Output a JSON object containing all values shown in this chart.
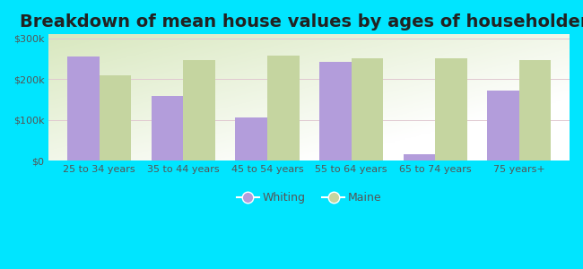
{
  "title": "Breakdown of mean house values by ages of householders",
  "categories": [
    "25 to 34 years",
    "35 to 44 years",
    "45 to 54 years",
    "55 to 64 years",
    "65 to 74 years",
    "75 years+"
  ],
  "whiting_values": [
    255000,
    160000,
    107000,
    242000,
    15000,
    172000
  ],
  "maine_values": [
    210000,
    248000,
    258000,
    252000,
    252000,
    248000
  ],
  "whiting_color": "#b39ddb",
  "maine_color": "#c5d5a0",
  "background_outer": "#00e5ff",
  "ylim": [
    0,
    310000
  ],
  "yticks": [
    0,
    100000,
    200000,
    300000
  ],
  "ytick_labels": [
    "$0",
    "$100k",
    "$200k",
    "$300k"
  ],
  "bar_width": 0.38,
  "legend_labels": [
    "Whiting",
    "Maine"
  ],
  "title_fontsize": 14,
  "tick_fontsize": 8,
  "legend_fontsize": 9
}
